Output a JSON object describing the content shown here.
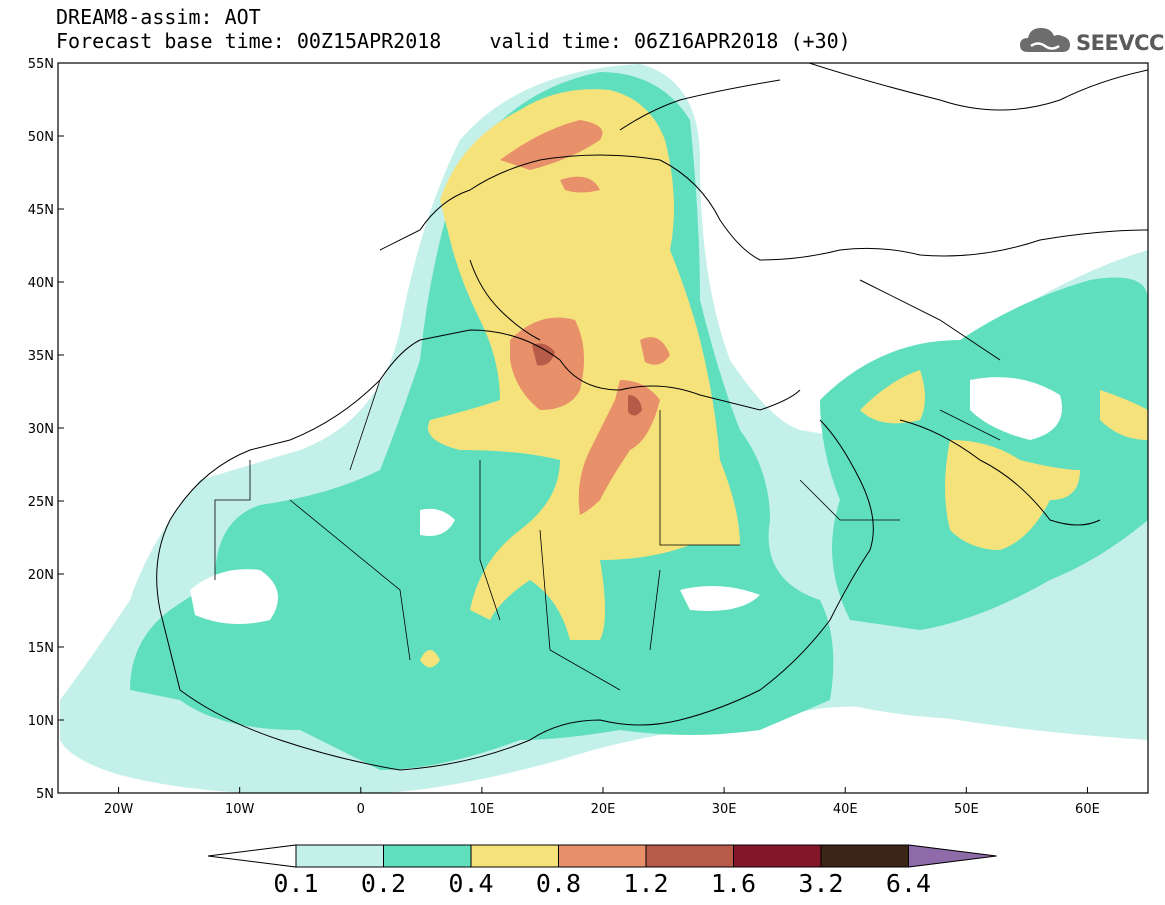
{
  "header": {
    "line1": "DREAM8-assim: AOT",
    "line2": "Forecast base time: 00Z15APR2018    valid time: 06Z16APR2018 (+30)"
  },
  "logo": {
    "text": "SEEVCCC",
    "icon": "cloud-icon"
  },
  "map": {
    "lat_labels": [
      "55N",
      "50N",
      "45N",
      "40N",
      "35N",
      "30N",
      "25N",
      "20N",
      "15N",
      "10N",
      "5N"
    ],
    "lon_labels": [
      "20W",
      "10W",
      "0",
      "10E",
      "20E",
      "30E",
      "40E",
      "50E",
      "60E"
    ],
    "lat_range": [
      5,
      55
    ],
    "lon_range": [
      -25,
      65
    ]
  },
  "colorbar": {
    "levels": [
      "0.1",
      "0.2",
      "0.4",
      "0.8",
      "1.2",
      "1.6",
      "3.2",
      "6.4"
    ],
    "colors": [
      "#c4f0ea",
      "#5fdfbe",
      "#f6e27b",
      "#e8906a",
      "#b75a48",
      "#84162c",
      "#3b2516",
      "#8f6aa8"
    ]
  }
}
